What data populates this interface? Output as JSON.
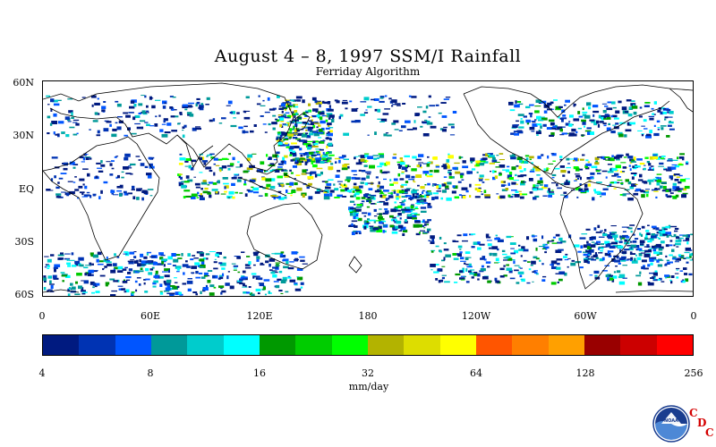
{
  "title": "August 4 – 8, 1997 SSM/I Rainfall",
  "subtitle": "Ferriday Algorithm",
  "lat_labels": [
    "60N",
    "30N",
    "EQ",
    "30S",
    "60S"
  ],
  "lon_labels": [
    "0",
    "60E",
    "120E",
    "180",
    "120W",
    "60W",
    "0"
  ],
  "colorbar": {
    "colors": [
      "#001a80",
      "#0033b3",
      "#0055ff",
      "#009999",
      "#00cccc",
      "#00ffff",
      "#009900",
      "#00cc00",
      "#00ff00",
      "#b3b300",
      "#dddd00",
      "#ffff00",
      "#ff5500",
      "#ff7f00",
      "#ffa000",
      "#990000",
      "#cc0000",
      "#ff0000"
    ],
    "tick_labels": [
      "4",
      "8",
      "16",
      "32",
      "64",
      "128",
      "256"
    ],
    "units": "mm/day"
  },
  "logo": {
    "name": "noaa-logo",
    "text": "NOAA",
    "letters": [
      "C",
      "D",
      "C"
    ]
  }
}
